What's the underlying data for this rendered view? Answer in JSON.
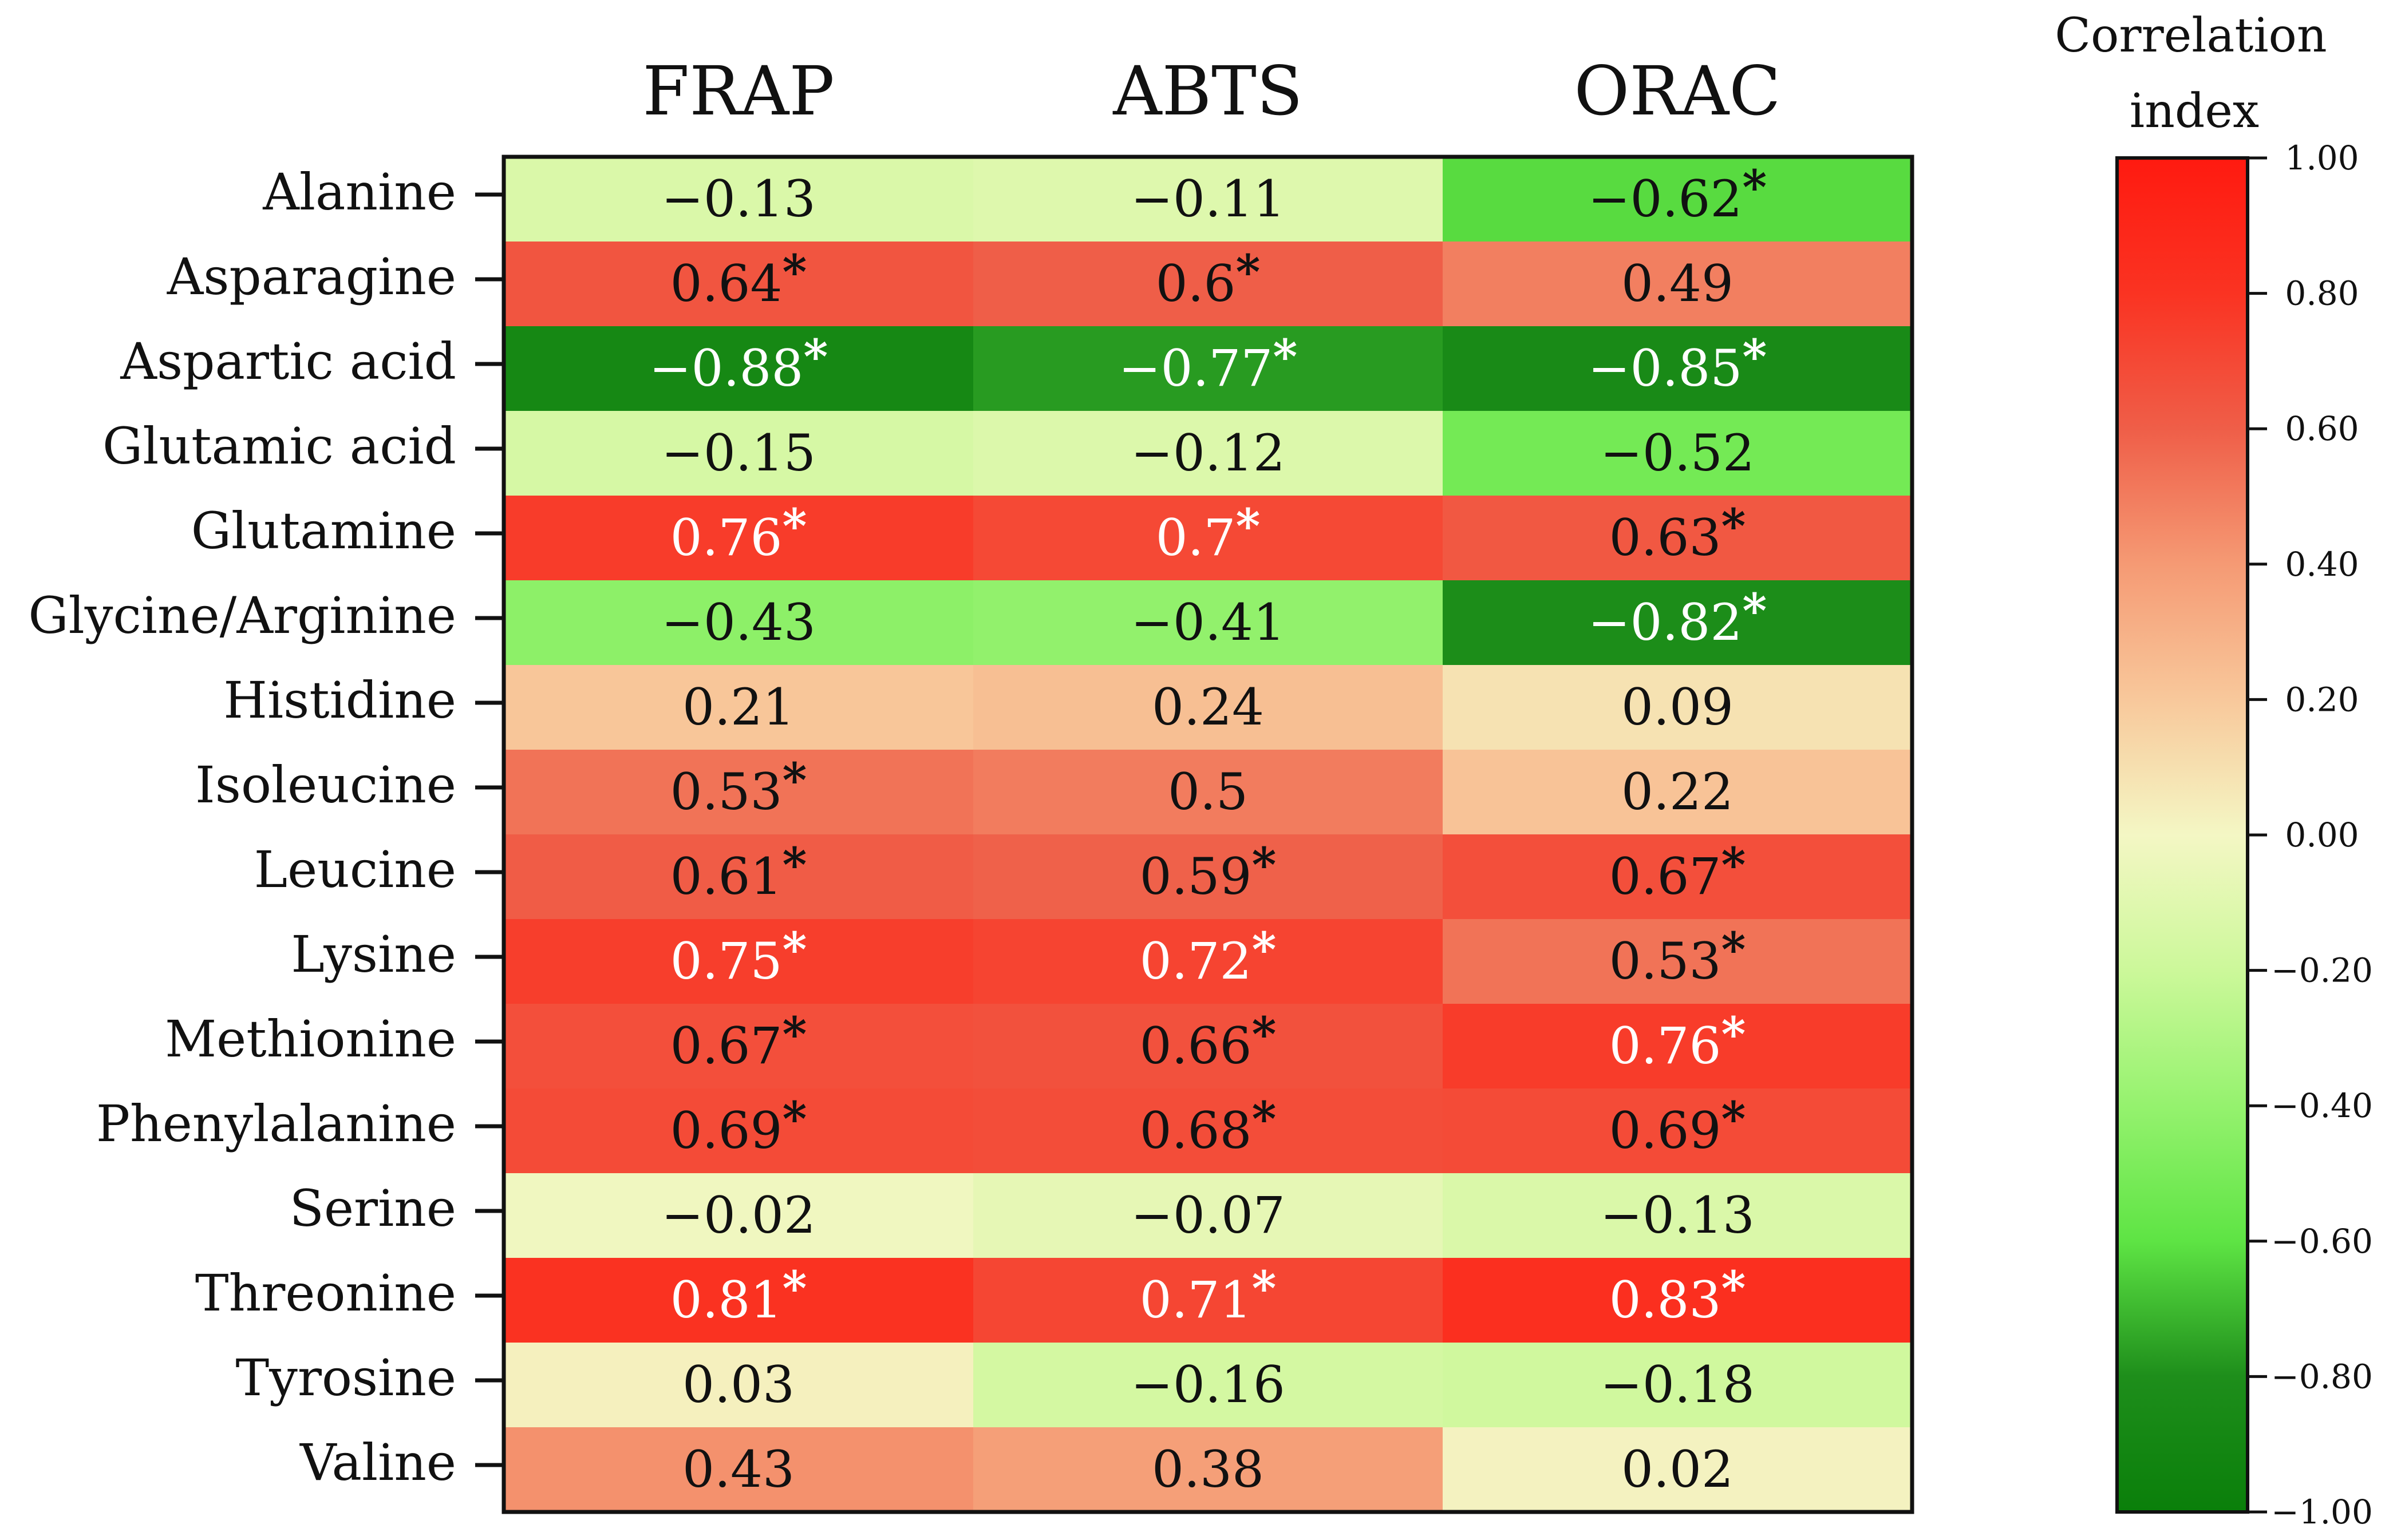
{
  "chart_data": {
    "type": "heatmap",
    "title": "",
    "columns": [
      "FRAP",
      "ABTS",
      "ORAC"
    ],
    "rows": [
      "Alanine",
      "Asparagine",
      "Aspartic acid",
      "Glutamic acid",
      "Glutamine",
      "Glycine/Arginine",
      "Histidine",
      "Isoleucine",
      "Leucine",
      "Lysine",
      "Methionine",
      "Phenylalanine",
      "Serine",
      "Threonine",
      "Tyrosine",
      "Valine"
    ],
    "values": [
      [
        -0.13,
        -0.11,
        -0.62
      ],
      [
        0.64,
        0.6,
        0.49
      ],
      [
        -0.88,
        -0.77,
        -0.85
      ],
      [
        -0.15,
        -0.12,
        -0.52
      ],
      [
        0.76,
        0.7,
        0.63
      ],
      [
        -0.43,
        -0.41,
        -0.82
      ],
      [
        0.21,
        0.24,
        0.09
      ],
      [
        0.53,
        0.5,
        0.22
      ],
      [
        0.61,
        0.59,
        0.67
      ],
      [
        0.75,
        0.72,
        0.53
      ],
      [
        0.67,
        0.66,
        0.76
      ],
      [
        0.69,
        0.68,
        0.69
      ],
      [
        -0.02,
        -0.07,
        -0.13
      ],
      [
        0.81,
        0.71,
        0.83
      ],
      [
        0.03,
        -0.16,
        -0.18
      ],
      [
        0.43,
        0.38,
        0.02
      ]
    ],
    "cell_labels": [
      [
        "−0.13",
        "−0.11",
        "−0.62"
      ],
      [
        "0.64",
        "0.6",
        "0.49"
      ],
      [
        "−0.88",
        "−0.77",
        "−0.85"
      ],
      [
        "−0.15",
        "−0.12",
        "−0.52"
      ],
      [
        "0.76",
        "0.7",
        "0.63"
      ],
      [
        "−0.43",
        "−0.41",
        "−0.82"
      ],
      [
        "0.21",
        "0.24",
        "0.09"
      ],
      [
        "0.53",
        "0.5",
        "0.22"
      ],
      [
        "0.61",
        "0.59",
        "0.67"
      ],
      [
        "0.75",
        "0.72",
        "0.53"
      ],
      [
        "0.67",
        "0.66",
        "0.76"
      ],
      [
        "0.69",
        "0.68",
        "0.69"
      ],
      [
        "−0.02",
        "−0.07",
        "−0.13"
      ],
      [
        "0.81",
        "0.71",
        "0.83"
      ],
      [
        "0.03",
        "−0.16",
        "−0.18"
      ],
      [
        "0.43",
        "0.38",
        "0.02"
      ]
    ],
    "significant": [
      [
        false,
        false,
        true
      ],
      [
        true,
        true,
        false
      ],
      [
        true,
        true,
        true
      ],
      [
        false,
        false,
        false
      ],
      [
        true,
        true,
        true
      ],
      [
        false,
        false,
        true
      ],
      [
        false,
        false,
        false
      ],
      [
        true,
        false,
        false
      ],
      [
        true,
        true,
        true
      ],
      [
        true,
        true,
        true
      ],
      [
        true,
        true,
        true
      ],
      [
        true,
        true,
        true
      ],
      [
        false,
        false,
        false
      ],
      [
        true,
        true,
        true
      ],
      [
        false,
        false,
        false
      ],
      [
        false,
        false,
        false
      ]
    ],
    "significance_marker": "*",
    "colorbar": {
      "title_lines": [
        "Correlation",
        "index"
      ],
      "range": [
        -1.0,
        1.0
      ],
      "ticks": [
        1.0,
        0.8,
        0.6,
        0.4,
        0.2,
        0.0,
        -0.2,
        -0.4,
        -0.6,
        -0.8,
        -1.0
      ],
      "tick_labels": [
        "1.00",
        "0.80",
        "0.60",
        "0.40",
        "0.20",
        "0.00",
        "−0.20",
        "−0.40",
        "−0.60",
        "−0.80",
        "−1.00"
      ],
      "color_stops": [
        {
          "value": -1.0,
          "color": "#0a7f0a"
        },
        {
          "value": -0.8,
          "color": "#1e8e1b"
        },
        {
          "value": -0.6,
          "color": "#5ee444"
        },
        {
          "value": -0.4,
          "color": "#95f26e"
        },
        {
          "value": -0.2,
          "color": "#ccf89a"
        },
        {
          "value": 0.0,
          "color": "#f4f7c4"
        },
        {
          "value": 0.2,
          "color": "#f8c89b"
        },
        {
          "value": 0.4,
          "color": "#f59a74"
        },
        {
          "value": 0.6,
          "color": "#ef5e48"
        },
        {
          "value": 0.8,
          "color": "#fa3322"
        },
        {
          "value": 1.0,
          "color": "#ff1a10"
        }
      ]
    },
    "text_colors": {
      "dark": "#111111",
      "light": "#ffffff"
    },
    "axis_color": "#111111"
  }
}
